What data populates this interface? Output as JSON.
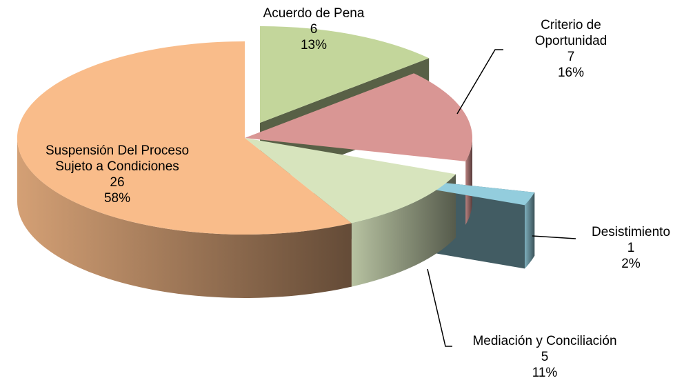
{
  "chart_data": {
    "type": "pie3d",
    "categories": [
      "Acuerdo de Pena",
      "Criterio de Oportunidad",
      "Desistimiento",
      "Mediación y Conciliación",
      "Suspensión Del Proceso Sujeto a Condiciones"
    ],
    "values": [
      6,
      7,
      1,
      5,
      26
    ],
    "percent_labels": [
      "13%",
      "16%",
      "2%",
      "11%",
      "58%"
    ],
    "colors": [
      "#c3d69b",
      "#d99694",
      "#93cddd",
      "#d7e4bd",
      "#f9bc8a"
    ],
    "exploded": [
      true,
      false,
      true,
      false,
      false
    ]
  }
}
